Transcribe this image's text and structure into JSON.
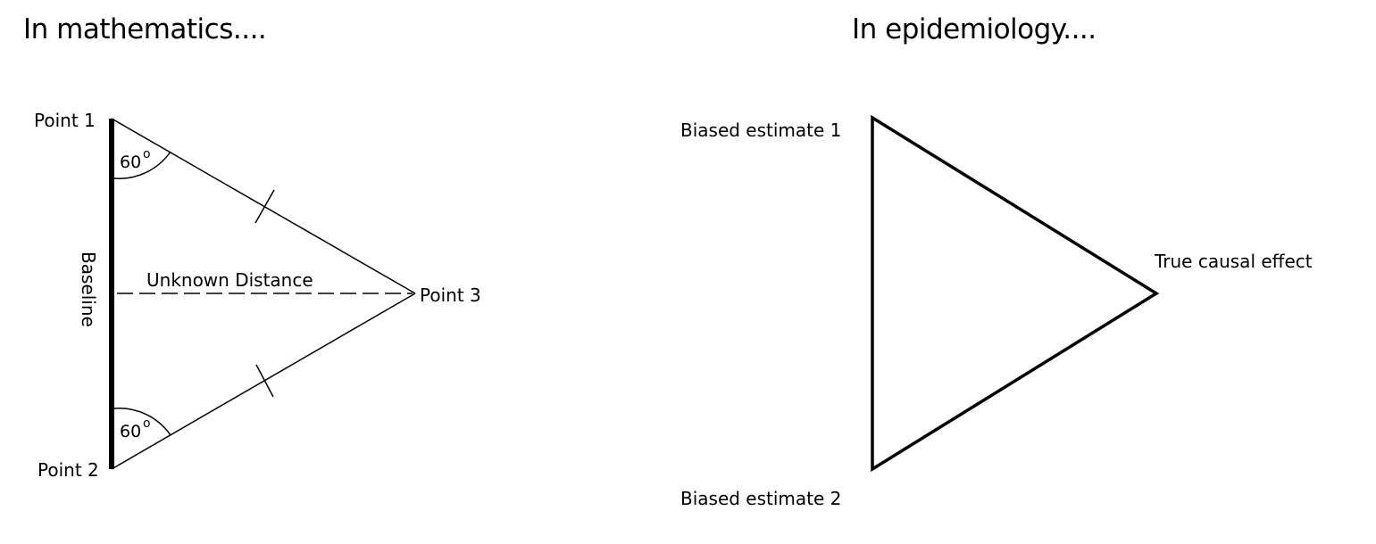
{
  "headings": {
    "math": "In mathematics....",
    "epi": "In epidemiology...."
  },
  "math_diagram": {
    "point1": "Point 1",
    "point2": "Point 2",
    "point3": "Point 3",
    "baseline": "Baseline",
    "distance": "Unknown Distance",
    "angle_top": "60",
    "angle_bottom": "60",
    "degree_mark": "o"
  },
  "epi_diagram": {
    "estimate1": "Biased estimate 1",
    "estimate2": "Biased estimate 2",
    "true_effect": "True causal effect"
  }
}
